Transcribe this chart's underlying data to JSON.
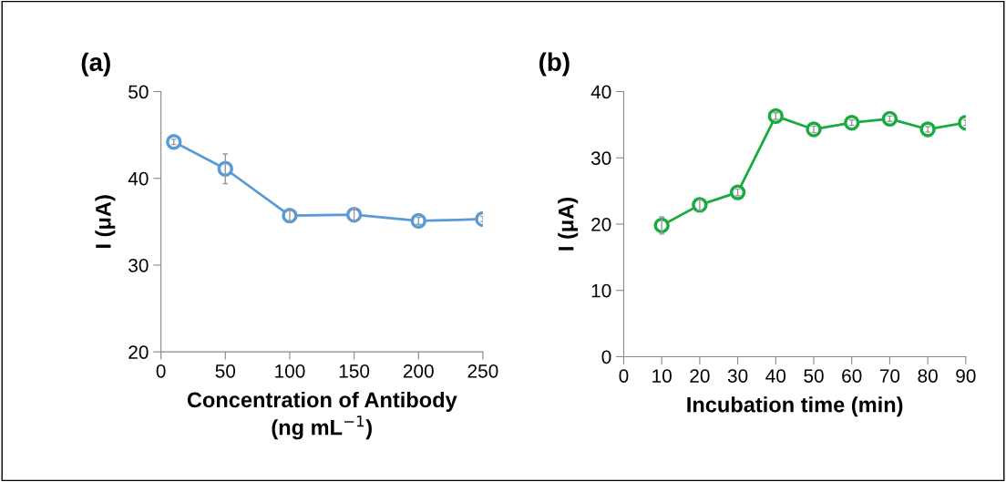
{
  "chart_data": [
    {
      "type": "line",
      "title": "(a)",
      "xlabel": "Concentration of Antibody\n(ng mL$^{−1}$)",
      "ylabel": "I (μA)",
      "x": [
        10,
        50,
        100,
        150,
        200,
        250
      ],
      "series": [
        {
          "color": "#5b9bd5",
          "values": [
            44.2,
            41.1,
            35.7,
            35.8,
            35.1,
            35.3
          ],
          "errors": [
            0.3,
            1.7,
            0.6,
            0.7,
            0.4,
            0.3
          ]
        }
      ],
      "xlim": [
        0,
        250
      ],
      "xticks": [
        0,
        50,
        100,
        150,
        200,
        250
      ],
      "ylim": [
        20,
        50
      ],
      "yticks": [
        20,
        30,
        40,
        50
      ],
      "marker": "circle",
      "line_style": "solid",
      "grid": false,
      "legend": false
    },
    {
      "type": "line",
      "title": "(b)",
      "xlabel": "Incubation time (min)",
      "ylabel": "I (μA)",
      "x": [
        10,
        20,
        30,
        40,
        50,
        60,
        70,
        80,
        90
      ],
      "series": [
        {
          "color": "#1aab40",
          "values": [
            19.8,
            22.9,
            24.8,
            36.3,
            34.3,
            35.3,
            35.9,
            34.3,
            35.3
          ],
          "errors": [
            1.3,
            0.8,
            0.5,
            0.5,
            0.5,
            0.4,
            0.4,
            0.4,
            0.4
          ]
        }
      ],
      "xlim": [
        0,
        90
      ],
      "xticks": [
        0,
        10,
        20,
        30,
        40,
        50,
        60,
        70,
        80,
        90
      ],
      "ylim": [
        0,
        40
      ],
      "yticks": [
        0,
        10,
        20,
        30,
        40
      ],
      "marker": "circle",
      "line_style": "solid",
      "grid": false,
      "legend": false
    }
  ]
}
